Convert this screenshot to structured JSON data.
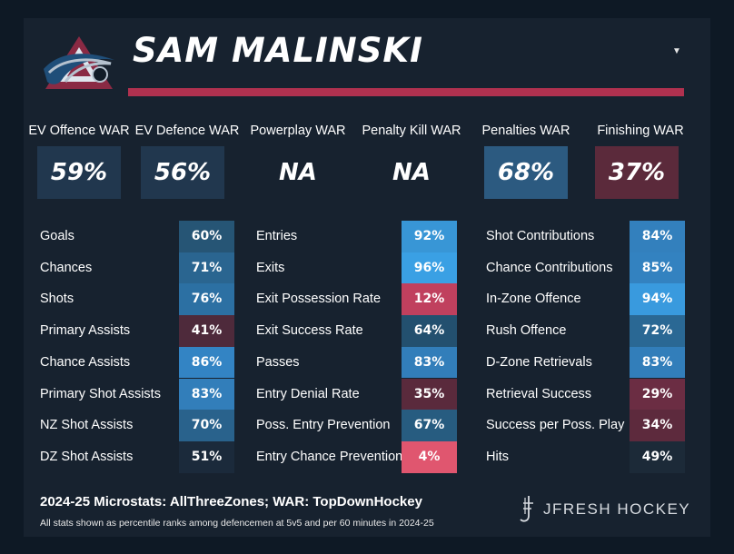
{
  "header": {
    "player_name": "SAM MALINSKI",
    "team_logo_icon": "colorado-avalanche-logo-icon",
    "dropdown_icon": "caret-down-icon",
    "accent_color": "#b0314f"
  },
  "war": [
    {
      "label": "EV Offence WAR",
      "value": "59%",
      "color": "#21374e"
    },
    {
      "label": "EV Defence WAR",
      "value": "56%",
      "color": "#21374e"
    },
    {
      "label": "Powerplay WAR",
      "value": "NA",
      "color": ""
    },
    {
      "label": "Penalty Kill WAR",
      "value": "NA",
      "color": ""
    },
    {
      "label": "Penalties WAR",
      "value": "68%",
      "color": "#2c5a80"
    },
    {
      "label": "Finishing WAR",
      "value": "37%",
      "color": "#5b2a3b"
    }
  ],
  "columns": [
    {
      "rows": [
        {
          "label": "Goals",
          "value": "60%",
          "color": "#265575"
        },
        {
          "label": "Chances",
          "value": "71%",
          "color": "#2a6590"
        },
        {
          "label": "Shots",
          "value": "76%",
          "color": "#2c70a3"
        },
        {
          "label": "Primary Assists",
          "value": "41%",
          "color": "#4e2a3b"
        },
        {
          "label": "Chance Assists",
          "value": "86%",
          "color": "#3384c4"
        },
        {
          "label": "Primary Shot Assists",
          "value": "83%",
          "color": "#327eba"
        },
        {
          "label": "NZ Shot Assists",
          "value": "70%",
          "color": "#29628c"
        },
        {
          "label": "DZ Shot Assists",
          "value": "51%",
          "color": "#1b2a3b"
        }
      ]
    },
    {
      "rows": [
        {
          "label": "Entries",
          "value": "92%",
          "color": "#3896d6"
        },
        {
          "label": "Exits",
          "value": "96%",
          "color": "#3aa0e4"
        },
        {
          "label": "Exit Possession Rate",
          "value": "12%",
          "color": "#c0405e"
        },
        {
          "label": "Exit Success Rate",
          "value": "64%",
          "color": "#23506f"
        },
        {
          "label": "Passes",
          "value": "83%",
          "color": "#327eba"
        },
        {
          "label": "Entry Denial Rate",
          "value": "35%",
          "color": "#5a2a3c"
        },
        {
          "label": "Poss. Entry Prevention",
          "value": "67%",
          "color": "#275c80"
        },
        {
          "label": "Entry Chance Prevention",
          "value": "4%",
          "color": "#e0566f"
        }
      ]
    },
    {
      "rows": [
        {
          "label": "Shot Contributions",
          "value": "84%",
          "color": "#3380bd"
        },
        {
          "label": "Chance Contributions",
          "value": "85%",
          "color": "#3382c0"
        },
        {
          "label": "In-Zone Offence",
          "value": "94%",
          "color": "#399ade"
        },
        {
          "label": "Rush Offence",
          "value": "72%",
          "color": "#2a6894"
        },
        {
          "label": "D-Zone Retrievals",
          "value": "83%",
          "color": "#327eba"
        },
        {
          "label": "Retrieval Success",
          "value": "29%",
          "color": "#6b2d43"
        },
        {
          "label": "Success per Poss. Play",
          "value": "34%",
          "color": "#5d2a3d"
        },
        {
          "label": "Hits",
          "value": "49%",
          "color": "#1c2a38"
        }
      ]
    }
  ],
  "footer": {
    "season_text": "2024-25 Microstats: ",
    "microstats_source": "AllThreeZones",
    "war_text": "; WAR: ",
    "war_source": "TopDownHockey",
    "note": "All stats shown as percentile ranks among defencemen at 5v5 and per 60 minutes in 2024-25",
    "brand": "JFRESH HOCKEY",
    "brand_icon": "jfresh-monogram-icon"
  }
}
